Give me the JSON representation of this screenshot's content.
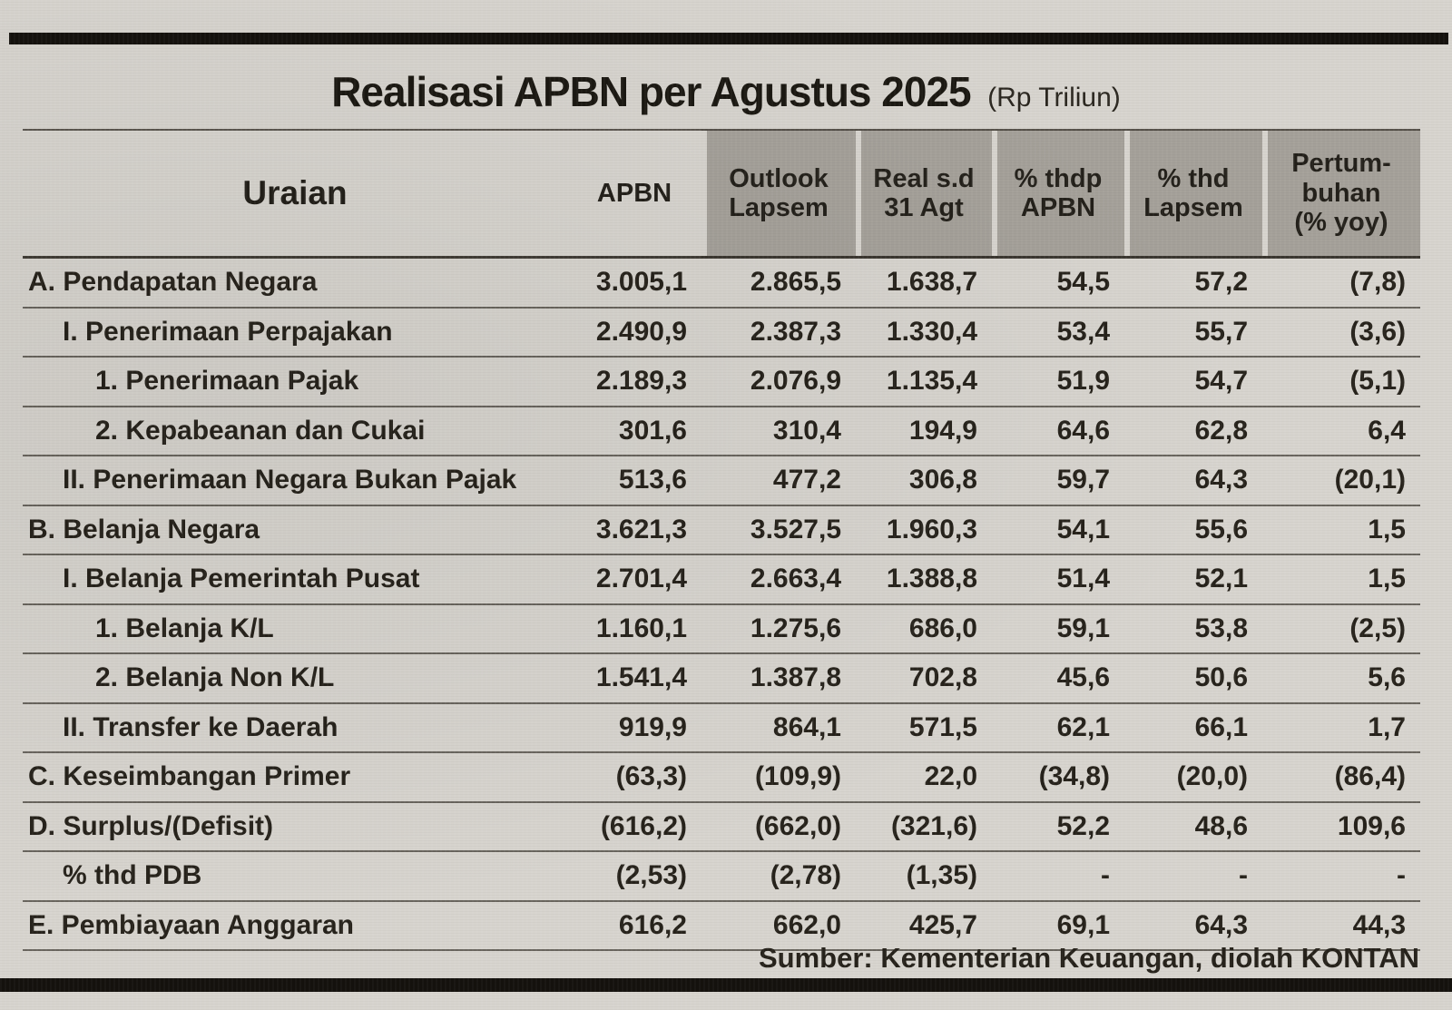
{
  "chart_data": {
    "type": "table",
    "title": "Realisasi APBN per Agustus 2025",
    "unit": "(Rp Triliun)",
    "source": "Sumber: Kementerian Keuangan, diolah KONTAN",
    "columns": [
      "Uraian",
      "APBN",
      "Outlook\nLapsem",
      "Real s.d\n31 Agt",
      "% thdp\nAPBN",
      "% thd\nLapsem",
      "Pertum-\nbuhan\n(% yoy)"
    ],
    "rows": [
      {
        "label": "A. Pendapatan Negara",
        "indent": 0,
        "values": [
          "3.005,1",
          "2.865,5",
          "1.638,7",
          "54,5",
          "57,2",
          "(7,8)"
        ]
      },
      {
        "label": "I. Penerimaan Perpajakan",
        "indent": 1,
        "values": [
          "2.490,9",
          "2.387,3",
          "1.330,4",
          "53,4",
          "55,7",
          "(3,6)"
        ]
      },
      {
        "label": "1. Penerimaan Pajak",
        "indent": 2,
        "values": [
          "2.189,3",
          "2.076,9",
          "1.135,4",
          "51,9",
          "54,7",
          "(5,1)"
        ]
      },
      {
        "label": "2. Kepabeanan dan Cukai",
        "indent": 2,
        "values": [
          "301,6",
          "310,4",
          "194,9",
          "64,6",
          "62,8",
          "6,4"
        ]
      },
      {
        "label": "II. Penerimaan Negara Bukan Pajak",
        "indent": 1,
        "values": [
          "513,6",
          "477,2",
          "306,8",
          "59,7",
          "64,3",
          "(20,1)"
        ]
      },
      {
        "label": "B. Belanja Negara",
        "indent": 0,
        "values": [
          "3.621,3",
          "3.527,5",
          "1.960,3",
          "54,1",
          "55,6",
          "1,5"
        ]
      },
      {
        "label": "I. Belanja Pemerintah Pusat",
        "indent": 1,
        "values": [
          "2.701,4",
          "2.663,4",
          "1.388,8",
          "51,4",
          "52,1",
          "1,5"
        ]
      },
      {
        "label": "1. Belanja K/L",
        "indent": 2,
        "values": [
          "1.160,1",
          "1.275,6",
          "686,0",
          "59,1",
          "53,8",
          "(2,5)"
        ]
      },
      {
        "label": "2. Belanja Non K/L",
        "indent": 2,
        "values": [
          "1.541,4",
          "1.387,8",
          "702,8",
          "45,6",
          "50,6",
          "5,6"
        ]
      },
      {
        "label": "II. Transfer ke Daerah",
        "indent": 1,
        "values": [
          "919,9",
          "864,1",
          "571,5",
          "62,1",
          "66,1",
          "1,7"
        ]
      },
      {
        "label": "C. Keseimbangan Primer",
        "indent": 0,
        "values": [
          "(63,3)",
          "(109,9)",
          "22,0",
          "(34,8)",
          "(20,0)",
          "(86,4)"
        ]
      },
      {
        "label": "D. Surplus/(Defisit)",
        "indent": 0,
        "values": [
          "(616,2)",
          "(662,0)",
          "(321,6)",
          "52,2",
          "48,6",
          "109,6"
        ]
      },
      {
        "label": "% thd PDB",
        "indent": 1,
        "values": [
          "(2,53)",
          "(2,78)",
          "(1,35)",
          "-",
          "-",
          "-"
        ]
      },
      {
        "label": "E. Pembiayaan Anggaran",
        "indent": 0,
        "values": [
          "616,2",
          "662,0",
          "425,7",
          "69,1",
          "64,3",
          "44,3"
        ]
      }
    ]
  }
}
